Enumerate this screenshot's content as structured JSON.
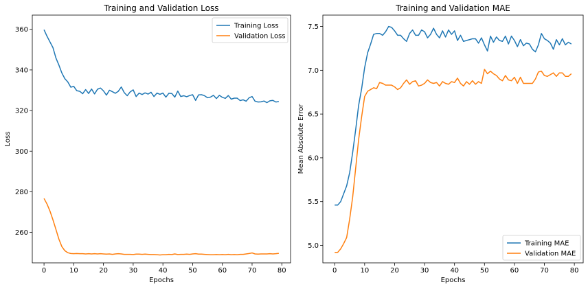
{
  "chart_data": [
    {
      "type": "line",
      "title": "Training and Validation Loss",
      "xlabel": "Epochs",
      "ylabel": "Loss",
      "xlim": [
        -3.95,
        82.95
      ],
      "ylim": [
        245,
        367
      ],
      "xticks": [
        0,
        10,
        20,
        30,
        40,
        50,
        60,
        70,
        80
      ],
      "yticks": [
        260,
        280,
        300,
        320,
        340,
        360
      ],
      "legend_position": "top-right",
      "grid": false,
      "series": [
        {
          "name": "Training Loss",
          "color": "#1f77b4",
          "x": [
            0,
            1,
            2,
            3,
            4,
            5,
            6,
            7,
            8,
            9,
            10,
            11,
            12,
            13,
            14,
            15,
            16,
            17,
            18,
            19,
            20,
            21,
            22,
            23,
            24,
            25,
            26,
            27,
            28,
            29,
            30,
            31,
            32,
            33,
            34,
            35,
            36,
            37,
            38,
            39,
            40,
            41,
            42,
            43,
            44,
            45,
            46,
            47,
            48,
            49,
            50,
            51,
            52,
            53,
            54,
            55,
            56,
            57,
            58,
            59,
            60,
            61,
            62,
            63,
            64,
            65,
            66,
            67,
            68,
            69,
            70,
            71,
            72,
            73,
            74,
            75,
            76,
            77,
            78,
            79
          ],
          "values": [
            359.8,
            356.6,
            353.8,
            351.0,
            345.9,
            342.4,
            338.5,
            335.7,
            334.1,
            331.5,
            331.9,
            329.8,
            329.5,
            328.3,
            330.3,
            328.4,
            330.6,
            328.2,
            330.5,
            331.1,
            329.7,
            327.6,
            330.0,
            329.3,
            328.5,
            329.5,
            331.6,
            328.8,
            327.3,
            329.2,
            330.2,
            326.9,
            328.6,
            327.9,
            328.7,
            328.1,
            329.0,
            326.9,
            328.6,
            328.0,
            328.6,
            326.6,
            328.5,
            328.4,
            326.6,
            329.6,
            326.9,
            327.3,
            326.8,
            327.4,
            327.8,
            325.0,
            327.7,
            327.8,
            327.3,
            326.3,
            326.6,
            327.5,
            325.9,
            327.5,
            326.5,
            326.0,
            327.4,
            325.6,
            326.1,
            326.1,
            324.9,
            325.3,
            324.6,
            326.3,
            326.9,
            324.6,
            324.2,
            324.3,
            324.7,
            323.9,
            324.8,
            325.0,
            324.2,
            324.4
          ]
        },
        {
          "name": "Validation Loss",
          "color": "#ff7f0e",
          "x": [
            0,
            1,
            2,
            3,
            4,
            5,
            6,
            7,
            8,
            9,
            10,
            11,
            12,
            13,
            14,
            15,
            16,
            17,
            18,
            19,
            20,
            21,
            22,
            23,
            24,
            25,
            26,
            27,
            28,
            29,
            30,
            31,
            32,
            33,
            34,
            35,
            36,
            37,
            38,
            39,
            40,
            41,
            42,
            43,
            44,
            45,
            46,
            47,
            48,
            49,
            50,
            51,
            52,
            53,
            54,
            55,
            56,
            57,
            58,
            59,
            60,
            61,
            62,
            63,
            64,
            65,
            66,
            67,
            68,
            69,
            70,
            71,
            72,
            73,
            74,
            75,
            76,
            77,
            78,
            79
          ],
          "values": [
            276.7,
            274.0,
            270.5,
            266.2,
            261.5,
            256.7,
            253.0,
            251.0,
            250.0,
            249.6,
            249.5,
            249.6,
            249.5,
            249.5,
            249.4,
            249.5,
            249.4,
            249.5,
            249.4,
            249.5,
            249.4,
            249.3,
            249.4,
            249.2,
            249.4,
            249.5,
            249.4,
            249.2,
            249.2,
            249.2,
            249.1,
            249.3,
            249.3,
            249.2,
            249.3,
            249.2,
            249.1,
            249.1,
            249.0,
            248.9,
            249.0,
            249.0,
            249.2,
            249.1,
            249.4,
            249.1,
            249.2,
            249.2,
            249.3,
            249.2,
            249.4,
            249.5,
            249.3,
            249.3,
            249.2,
            249.1,
            249.0,
            249.0,
            249.1,
            249.0,
            249.1,
            249.0,
            249.2,
            249.0,
            249.1,
            249.0,
            249.2,
            249.2,
            249.4,
            249.6,
            249.9,
            249.4,
            249.3,
            249.4,
            249.4,
            249.4,
            249.5,
            249.4,
            249.5,
            249.7
          ]
        }
      ]
    },
    {
      "type": "line",
      "title": "Training and Validation MAE",
      "xlabel": "Epochs",
      "ylabel": "Mean Absolute Error",
      "xlim": [
        -3.95,
        82.95
      ],
      "ylim": [
        4.8,
        7.63
      ],
      "xticks": [
        0,
        10,
        20,
        30,
        40,
        50,
        60,
        70,
        80
      ],
      "yticks": [
        5.0,
        5.5,
        6.0,
        6.5,
        7.0,
        7.5
      ],
      "ytick_labels": [
        "5.0",
        "5.5",
        "6.0",
        "6.5",
        "7.0",
        "7.5"
      ],
      "legend_position": "bottom-right",
      "grid": false,
      "series": [
        {
          "name": "Training MAE",
          "color": "#1f77b4",
          "x": [
            0,
            1,
            2,
            3,
            4,
            5,
            6,
            7,
            8,
            9,
            10,
            11,
            12,
            13,
            14,
            15,
            16,
            17,
            18,
            19,
            20,
            21,
            22,
            23,
            24,
            25,
            26,
            27,
            28,
            29,
            30,
            31,
            32,
            33,
            34,
            35,
            36,
            37,
            38,
            39,
            40,
            41,
            42,
            43,
            44,
            45,
            46,
            47,
            48,
            49,
            50,
            51,
            52,
            53,
            54,
            55,
            56,
            57,
            58,
            59,
            60,
            61,
            62,
            63,
            64,
            65,
            66,
            67,
            68,
            69,
            70,
            71,
            72,
            73,
            74,
            75,
            76,
            77,
            78,
            79
          ],
          "values": [
            5.46,
            5.46,
            5.5,
            5.59,
            5.68,
            5.83,
            6.06,
            6.32,
            6.6,
            6.79,
            7.03,
            7.2,
            7.3,
            7.41,
            7.42,
            7.42,
            7.4,
            7.44,
            7.5,
            7.49,
            7.45,
            7.4,
            7.4,
            7.36,
            7.33,
            7.42,
            7.46,
            7.4,
            7.4,
            7.46,
            7.44,
            7.37,
            7.41,
            7.48,
            7.41,
            7.37,
            7.45,
            7.38,
            7.46,
            7.41,
            7.45,
            7.34,
            7.4,
            7.33,
            7.34,
            7.35,
            7.36,
            7.36,
            7.31,
            7.37,
            7.29,
            7.22,
            7.39,
            7.32,
            7.38,
            7.34,
            7.33,
            7.39,
            7.3,
            7.39,
            7.34,
            7.27,
            7.35,
            7.28,
            7.31,
            7.3,
            7.24,
            7.21,
            7.29,
            7.42,
            7.36,
            7.34,
            7.31,
            7.24,
            7.35,
            7.29,
            7.36,
            7.29,
            7.32,
            7.3
          ]
        },
        {
          "name": "Validation MAE",
          "color": "#ff7f0e",
          "x": [
            0,
            1,
            2,
            3,
            4,
            5,
            6,
            7,
            8,
            9,
            10,
            11,
            12,
            13,
            14,
            15,
            16,
            17,
            18,
            19,
            20,
            21,
            22,
            23,
            24,
            25,
            26,
            27,
            28,
            29,
            30,
            31,
            32,
            33,
            34,
            35,
            36,
            37,
            38,
            39,
            40,
            41,
            42,
            43,
            44,
            45,
            46,
            47,
            48,
            49,
            50,
            51,
            52,
            53,
            54,
            55,
            56,
            57,
            58,
            59,
            60,
            61,
            62,
            63,
            64,
            65,
            66,
            67,
            68,
            69,
            70,
            71,
            72,
            73,
            74,
            75,
            76,
            77,
            78,
            79
          ],
          "values": [
            4.92,
            4.92,
            4.96,
            5.02,
            5.09,
            5.3,
            5.55,
            5.88,
            6.21,
            6.47,
            6.7,
            6.76,
            6.78,
            6.8,
            6.79,
            6.86,
            6.85,
            6.83,
            6.83,
            6.83,
            6.81,
            6.78,
            6.8,
            6.85,
            6.89,
            6.84,
            6.87,
            6.88,
            6.82,
            6.83,
            6.85,
            6.89,
            6.86,
            6.85,
            6.86,
            6.82,
            6.87,
            6.85,
            6.84,
            6.87,
            6.86,
            6.91,
            6.85,
            6.82,
            6.87,
            6.84,
            6.88,
            6.84,
            6.87,
            6.85,
            7.01,
            6.96,
            6.99,
            6.96,
            6.94,
            6.9,
            6.88,
            6.94,
            6.89,
            6.88,
            6.92,
            6.85,
            6.92,
            6.85,
            6.85,
            6.85,
            6.85,
            6.9,
            6.98,
            6.99,
            6.94,
            6.93,
            6.95,
            6.97,
            6.93,
            6.97,
            6.97,
            6.93,
            6.93,
            6.96
          ]
        }
      ]
    }
  ]
}
